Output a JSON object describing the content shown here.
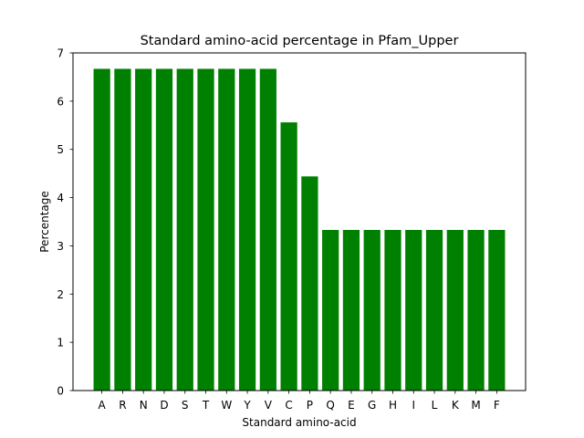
{
  "chart_data": {
    "type": "bar",
    "title": "Standard amino-acid percentage in Pfam_Upper",
    "xlabel": "Standard amino-acid",
    "ylabel": "Percentage",
    "categories": [
      "A",
      "R",
      "N",
      "D",
      "S",
      "T",
      "W",
      "Y",
      "V",
      "C",
      "P",
      "Q",
      "E",
      "G",
      "H",
      "I",
      "L",
      "K",
      "M",
      "F"
    ],
    "values": [
      6.67,
      6.67,
      6.67,
      6.67,
      6.67,
      6.67,
      6.67,
      6.67,
      6.67,
      5.56,
      4.44,
      3.33,
      3.33,
      3.33,
      3.33,
      3.33,
      3.33,
      3.33,
      3.33,
      3.33
    ],
    "ylim": [
      0,
      7
    ],
    "yticks": [
      "0",
      "1",
      "2",
      "3",
      "4",
      "5",
      "6",
      "7"
    ],
    "bar_color": "#008000",
    "grid": false,
    "legend": "none"
  }
}
